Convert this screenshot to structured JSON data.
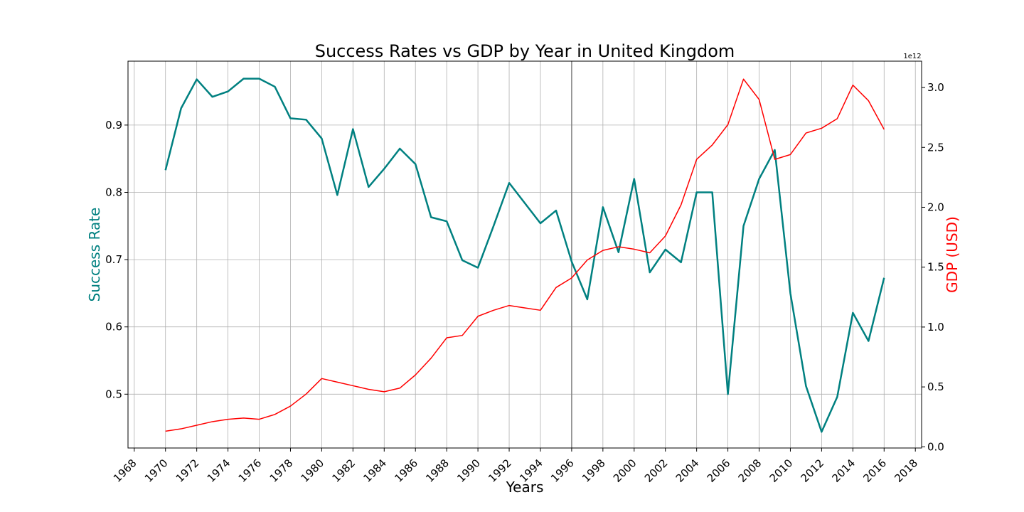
{
  "chart_data": {
    "type": "line",
    "title": "Success Rates vs GDP by Year in United Kingdom",
    "xlabel": "Years",
    "ylabel_left": "Success Rate",
    "ylabel_right": "GDP (USD)",
    "right_axis_offset_text": "1e12",
    "xlim": [
      1967.6,
      2018.4
    ],
    "ylim_left": [
      0.42,
      0.995
    ],
    "ylim_right": [
      -0.01,
      3.22
    ],
    "x_ticks": [
      "1968",
      "1970",
      "1972",
      "1974",
      "1976",
      "1978",
      "1980",
      "1982",
      "1984",
      "1986",
      "1988",
      "1990",
      "1992",
      "1994",
      "1996",
      "1998",
      "2000",
      "2002",
      "2004",
      "2006",
      "2008",
      "2010",
      "2012",
      "2014",
      "2016",
      "2018"
    ],
    "y_ticks_left": [
      "0.5",
      "0.6",
      "0.7",
      "0.8",
      "0.9"
    ],
    "y_ticks_left_values": [
      0.5,
      0.6,
      0.7,
      0.8,
      0.9
    ],
    "y_ticks_right": [
      "0.0",
      "0.5",
      "1.0",
      "1.5",
      "2.0",
      "2.5",
      "3.0"
    ],
    "y_ticks_right_values": [
      0.0,
      0.5,
      1.0,
      1.5,
      2.0,
      2.5,
      3.0
    ],
    "vertical_marker_x": 1996,
    "grid": true,
    "colors": {
      "success": "#008080",
      "gdp": "#ff0000",
      "marker": "#808080",
      "grid": "#b0b0b0"
    },
    "x": [
      1970,
      1971,
      1972,
      1973,
      1974,
      1975,
      1976,
      1977,
      1978,
      1979,
      1980,
      1981,
      1982,
      1983,
      1984,
      1985,
      1986,
      1987,
      1988,
      1989,
      1990,
      1991,
      1992,
      1993,
      1994,
      1995,
      1996,
      1997,
      1998,
      1999,
      2000,
      2001,
      2002,
      2003,
      2004,
      2005,
      2006,
      2007,
      2008,
      2009,
      2010,
      2011,
      2012,
      2013,
      2014,
      2015,
      2016
    ],
    "series": [
      {
        "name": "Success Rate",
        "axis": "left",
        "values": [
          0.833,
          0.925,
          0.968,
          0.942,
          0.95,
          0.969,
          0.969,
          0.957,
          0.91,
          0.908,
          0.88,
          0.796,
          0.894,
          0.808,
          0.835,
          0.865,
          0.842,
          0.763,
          0.757,
          0.699,
          0.688,
          0.75,
          0.814,
          0.784,
          0.754,
          0.773,
          0.697,
          0.641,
          0.778,
          0.711,
          0.82,
          0.681,
          0.715,
          0.696,
          0.8,
          0.8,
          0.5,
          0.75,
          0.82,
          0.863,
          0.65,
          0.512,
          0.444,
          0.496,
          0.621,
          0.579,
          0.673
        ]
      },
      {
        "name": "GDP (USD)",
        "axis": "right",
        "values": [
          0.13,
          0.15,
          0.18,
          0.21,
          0.23,
          0.24,
          0.23,
          0.27,
          0.34,
          0.44,
          0.57,
          0.54,
          0.51,
          0.48,
          0.46,
          0.49,
          0.6,
          0.74,
          0.91,
          0.93,
          1.09,
          1.14,
          1.18,
          1.16,
          1.14,
          1.33,
          1.41,
          1.56,
          1.64,
          1.67,
          1.65,
          1.62,
          1.76,
          2.02,
          2.4,
          2.52,
          2.69,
          3.07,
          2.9,
          2.4,
          2.44,
          2.62,
          2.66,
          2.74,
          3.02,
          2.89,
          2.65
        ]
      }
    ]
  }
}
